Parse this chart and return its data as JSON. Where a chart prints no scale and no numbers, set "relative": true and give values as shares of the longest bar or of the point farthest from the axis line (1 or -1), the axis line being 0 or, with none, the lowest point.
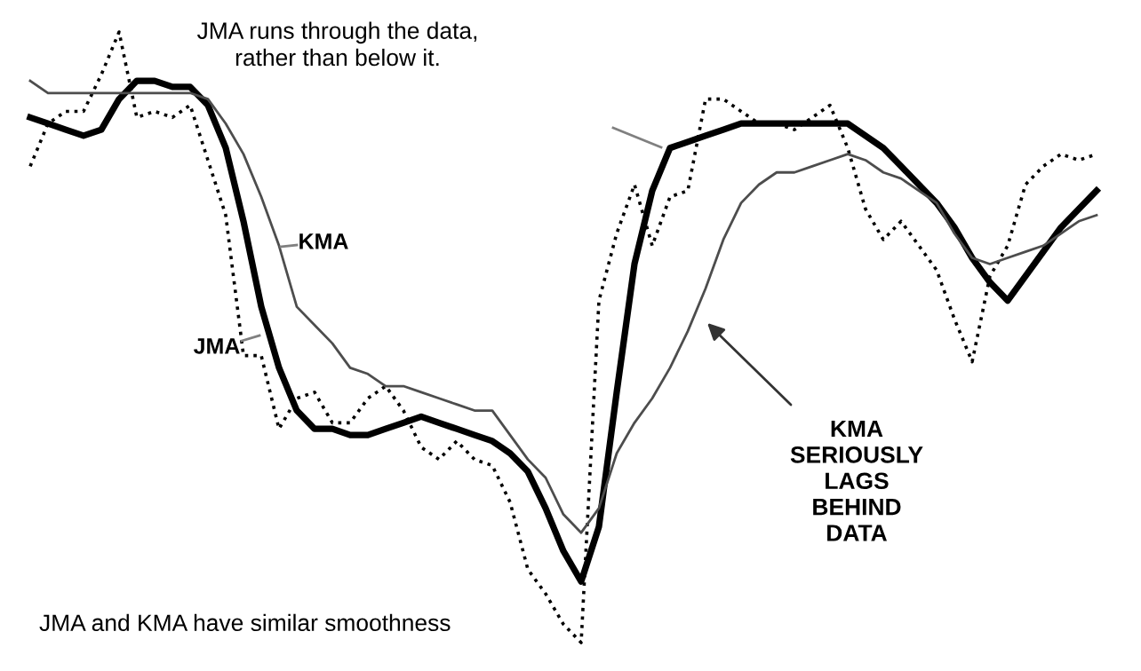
{
  "chart_data": {
    "type": "line",
    "relative": true,
    "categories": [
      null,
      null,
      null,
      null,
      null,
      null,
      null,
      null,
      null,
      null,
      null,
      null,
      null,
      null,
      null,
      null,
      null,
      null,
      null,
      null,
      null,
      null,
      null,
      null,
      null,
      null,
      null,
      null,
      null,
      null,
      null,
      null,
      null,
      null,
      null,
      null,
      null,
      null,
      null,
      null,
      null,
      null,
      null,
      null,
      null,
      null,
      null,
      null,
      null,
      null,
      null,
      null,
      null,
      null,
      null,
      null,
      null,
      null,
      null,
      null,
      null
    ],
    "series": [
      {
        "color": "#000000",
        "line_style": "dotted",
        "values": [
          0.78,
          0.85,
          0.87,
          0.87,
          0.93,
          1.0,
          0.86,
          0.87,
          0.86,
          0.88,
          0.79,
          0.7,
          0.47,
          0.47,
          0.35,
          0.4,
          0.41,
          0.36,
          0.36,
          0.4,
          0.42,
          0.38,
          0.32,
          0.3,
          0.33,
          0.3,
          0.29,
          0.23,
          0.12,
          0.08,
          0.03,
          0.0,
          0.56,
          0.67,
          0.75,
          0.65,
          0.73,
          0.74,
          0.89,
          0.89,
          0.87,
          0.85,
          0.85,
          0.84,
          0.86,
          0.88,
          0.81,
          0.71,
          0.66,
          0.69,
          0.65,
          0.61,
          0.53,
          0.46,
          0.6,
          0.65,
          0.75,
          0.78,
          0.8,
          0.79,
          0.8
        ]
      },
      {
        "name": "JMA",
        "color": "#000000",
        "line_style": "solid",
        "values": [
          0.86,
          0.85,
          0.84,
          0.83,
          0.84,
          0.89,
          0.92,
          0.92,
          0.91,
          0.91,
          0.88,
          0.81,
          0.69,
          0.55,
          0.45,
          0.38,
          0.35,
          0.35,
          0.34,
          0.34,
          0.35,
          0.36,
          0.37,
          0.36,
          0.35,
          0.34,
          0.33,
          0.31,
          0.28,
          0.22,
          0.15,
          0.1,
          0.19,
          0.41,
          0.62,
          0.74,
          0.81,
          0.82,
          0.83,
          0.84,
          0.85,
          0.85,
          0.85,
          0.85,
          0.85,
          0.85,
          0.85,
          0.83,
          0.81,
          0.78,
          0.75,
          0.72,
          0.68,
          0.63,
          0.59,
          0.56,
          0.6,
          0.64,
          0.68,
          0.71,
          0.74
        ]
      },
      {
        "name": "KMA",
        "color": "#4d4d4d",
        "line_style": "solid",
        "values": [
          0.92,
          0.9,
          0.9,
          0.9,
          0.9,
          0.9,
          0.9,
          0.9,
          0.9,
          0.9,
          0.89,
          0.85,
          0.8,
          0.73,
          0.65,
          0.55,
          0.52,
          0.49,
          0.45,
          0.44,
          0.42,
          0.42,
          0.41,
          0.4,
          0.39,
          0.38,
          0.38,
          0.34,
          0.3,
          0.27,
          0.21,
          0.18,
          0.22,
          0.31,
          0.36,
          0.4,
          0.45,
          0.51,
          0.58,
          0.66,
          0.72,
          0.75,
          0.77,
          0.77,
          0.78,
          0.79,
          0.8,
          0.79,
          0.77,
          0.76,
          0.74,
          0.72,
          0.67,
          0.63,
          0.62,
          0.63,
          0.64,
          0.65,
          0.67,
          0.69,
          0.7
        ]
      }
    ],
    "annotations": [
      "JMA runs through the data,\nrather than below it.",
      "KMA\nSERIOUSLY\nLAGS\nBEHIND\nDATA",
      "JMA and KMA have similar smoothness"
    ],
    "legend": false
  }
}
